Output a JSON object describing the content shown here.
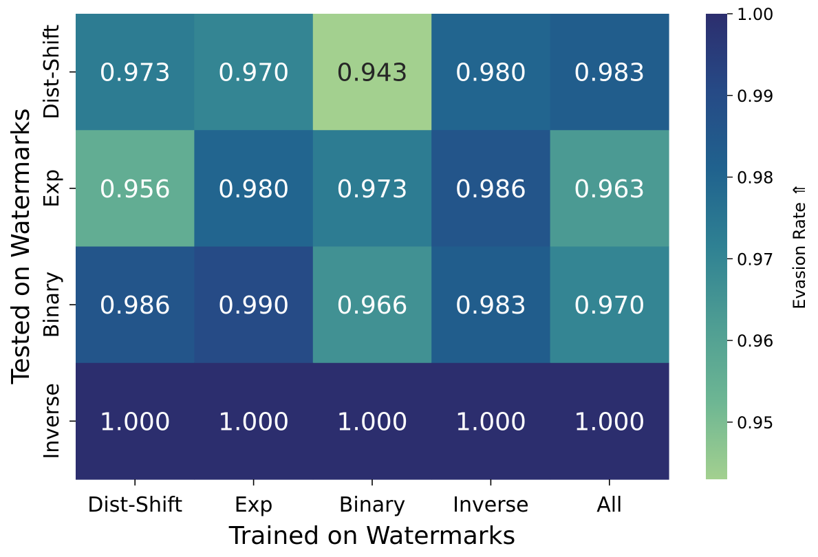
{
  "chart_data": {
    "type": "heatmap",
    "title": "",
    "xlabel": "Trained on Watermarks",
    "ylabel": "Tested on Watermarks",
    "x_categories": [
      "Dist-Shift",
      "Exp",
      "Binary",
      "Inverse",
      "All"
    ],
    "y_categories": [
      "Dist-Shift",
      "Exp",
      "Binary",
      "Inverse"
    ],
    "values": [
      [
        0.973,
        0.97,
        0.943,
        0.98,
        0.983
      ],
      [
        0.956,
        0.98,
        0.973,
        0.986,
        0.963
      ],
      [
        0.986,
        0.99,
        0.966,
        0.983,
        0.97
      ],
      [
        1.0,
        1.0,
        1.0,
        1.0,
        1.0
      ]
    ],
    "value_labels": [
      [
        "0.973",
        "0.970",
        "0.943",
        "0.980",
        "0.983"
      ],
      [
        "0.956",
        "0.980",
        "0.973",
        "0.986",
        "0.963"
      ],
      [
        "0.986",
        "0.990",
        "0.966",
        "0.983",
        "0.970"
      ],
      [
        "1.000",
        "1.000",
        "1.000",
        "1.000",
        "1.000"
      ]
    ],
    "colorbar": {
      "label": "Evasion Rate ⇑",
      "range": [
        0.943,
        1.0
      ],
      "ticks": [
        0.95,
        0.96,
        0.97,
        0.98,
        0.99,
        1.0
      ],
      "tick_labels": [
        "0.95",
        "0.96",
        "0.97",
        "0.98",
        "0.99",
        "1.00"
      ],
      "colormap": [
        "#a3d08f",
        "#6db693",
        "#4e9d93",
        "#2f8193",
        "#20628e",
        "#264a86",
        "#2c2e6e"
      ]
    },
    "legend": "colorbar at right",
    "grid": false
  }
}
